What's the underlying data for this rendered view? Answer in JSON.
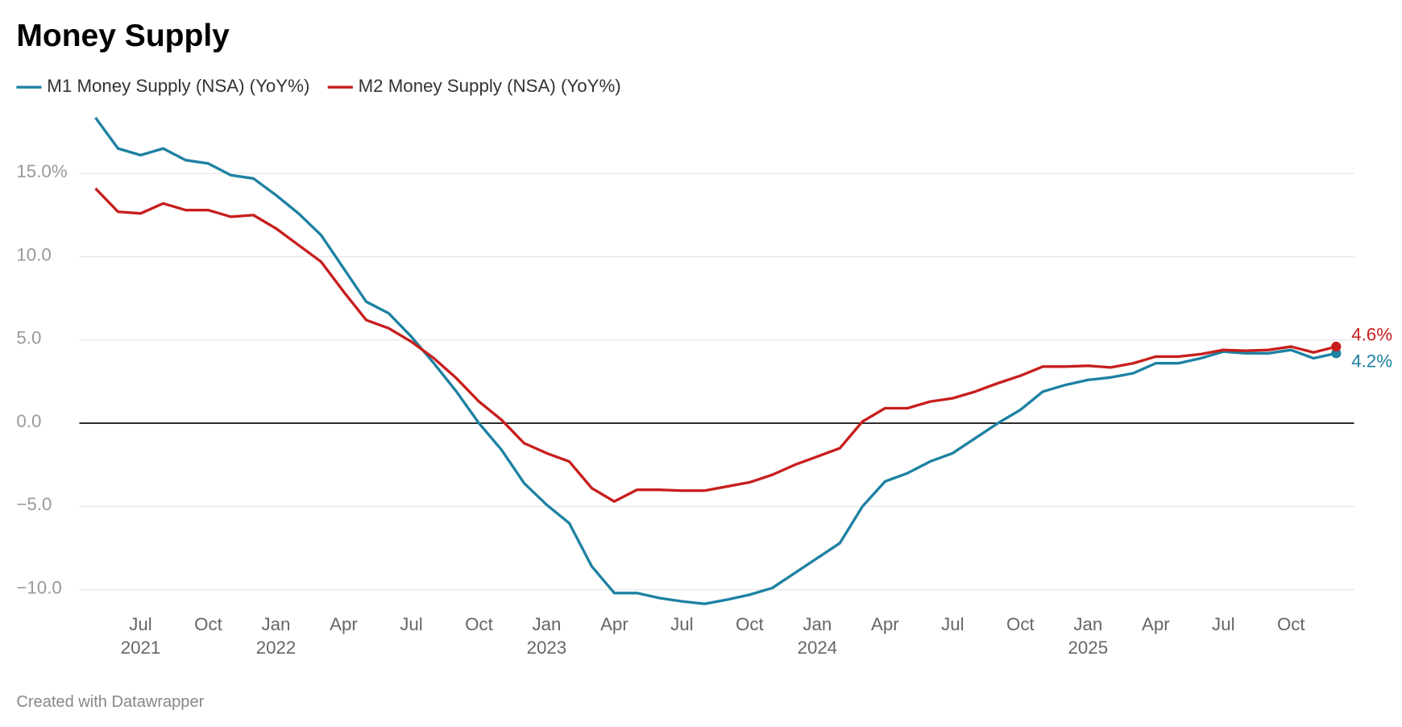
{
  "chart_data": {
    "type": "line",
    "title": "Money Supply",
    "footer": "Created with Datawrapper",
    "x": [
      "2021-05",
      "2021-06",
      "2021-07",
      "2021-08",
      "2021-09",
      "2021-10",
      "2021-11",
      "2021-12",
      "2022-01",
      "2022-02",
      "2022-03",
      "2022-04",
      "2022-05",
      "2022-06",
      "2022-07",
      "2022-08",
      "2022-09",
      "2022-10",
      "2022-11",
      "2022-12",
      "2023-01",
      "2023-02",
      "2023-03",
      "2023-04",
      "2023-05",
      "2023-06",
      "2023-07",
      "2023-08",
      "2023-09",
      "2023-10",
      "2023-11",
      "2023-12",
      "2024-01",
      "2024-02",
      "2024-03",
      "2024-04",
      "2024-05",
      "2024-06",
      "2024-07",
      "2024-08",
      "2024-09",
      "2024-10",
      "2024-11",
      "2024-12",
      "2025-01",
      "2025-02",
      "2025-03",
      "2025-04",
      "2025-05",
      "2025-06",
      "2025-07",
      "2025-08",
      "2025-09",
      "2025-10",
      "2025-11",
      "2025-12"
    ],
    "series": [
      {
        "name": "M1 Money Supply (NSA) (YoY%)",
        "color": "#1d81a2",
        "values": [
          18.35,
          16.5,
          16.1,
          16.5,
          15.8,
          15.6,
          14.9,
          14.7,
          13.7,
          12.6,
          11.3,
          9.3,
          7.3,
          6.6,
          5.2,
          3.6,
          1.9,
          0.0,
          -1.6,
          -3.6,
          -4.9,
          -6.0,
          -8.6,
          -10.2,
          -10.2,
          -10.5,
          -10.7,
          -10.85,
          -10.6,
          -10.3,
          -9.9,
          -9.0,
          -8.1,
          -7.2,
          -5.0,
          -3.5,
          -3.0,
          -2.3,
          -1.8,
          -0.9,
          0.0,
          0.8,
          1.9,
          2.3,
          2.6,
          2.75,
          3.0,
          3.6,
          3.6,
          3.9,
          4.3,
          4.2,
          4.2,
          4.4,
          3.9,
          4.2
        ],
        "value_labels": [
          null,
          null,
          null,
          null,
          null,
          null,
          null,
          null,
          null,
          null,
          null,
          null,
          null,
          null,
          null,
          null,
          null,
          null,
          null,
          null,
          null,
          null,
          null,
          null,
          null,
          null,
          null,
          null,
          null,
          null,
          null,
          null,
          null,
          null,
          null,
          null,
          null,
          null,
          null,
          null,
          null,
          null,
          null,
          null,
          null,
          null,
          null,
          null,
          null,
          null,
          null,
          null,
          null,
          null,
          null,
          "4.2%"
        ]
      },
      {
        "name": "M2 Money Supply (NSA) (YoY%)",
        "color": "#c71e1d",
        "values": [
          14.1,
          12.7,
          12.6,
          13.2,
          12.8,
          12.8,
          12.4,
          12.5,
          11.7,
          10.7,
          9.7,
          7.9,
          6.2,
          5.7,
          4.9,
          3.9,
          2.7,
          1.3,
          0.2,
          -1.2,
          -1.8,
          -2.3,
          -3.9,
          -4.7,
          -4.0,
          -4.0,
          -4.05,
          -4.05,
          -3.8,
          -3.55,
          -3.1,
          -2.5,
          -2.0,
          -1.5,
          0.1,
          0.9,
          0.9,
          1.3,
          1.5,
          1.9,
          2.4,
          2.85,
          3.4,
          3.4,
          3.45,
          3.35,
          3.6,
          4.0,
          4.0,
          4.15,
          4.4,
          4.35,
          4.4,
          4.6,
          4.25,
          4.6
        ],
        "value_labels": [
          null,
          null,
          null,
          null,
          null,
          null,
          null,
          null,
          null,
          null,
          null,
          null,
          null,
          null,
          null,
          null,
          null,
          null,
          null,
          null,
          null,
          null,
          null,
          null,
          null,
          null,
          null,
          null,
          null,
          null,
          null,
          null,
          null,
          null,
          null,
          null,
          null,
          null,
          null,
          null,
          null,
          null,
          null,
          null,
          null,
          null,
          null,
          null,
          null,
          null,
          null,
          null,
          null,
          null,
          null,
          "4.6%"
        ]
      }
    ],
    "ylim": [
      -11.5,
      18.5
    ],
    "yticks": [
      {
        "value": 15,
        "label": "15.0%"
      },
      {
        "value": 10,
        "label": "10.0"
      },
      {
        "value": 5,
        "label": "5.0"
      },
      {
        "value": 0,
        "label": "0.0"
      },
      {
        "value": -5,
        "label": "−5.0"
      },
      {
        "value": -10,
        "label": "−10.0"
      }
    ],
    "xticks": [
      {
        "value": "2021-07",
        "label": "Jul",
        "sublabel": "2021"
      },
      {
        "value": "2021-10",
        "label": "Oct"
      },
      {
        "value": "2022-01",
        "label": "Jan",
        "sublabel": "2022"
      },
      {
        "value": "2022-04",
        "label": "Apr"
      },
      {
        "value": "2022-07",
        "label": "Jul"
      },
      {
        "value": "2022-10",
        "label": "Oct"
      },
      {
        "value": "2023-01",
        "label": "Jan",
        "sublabel": "2023"
      },
      {
        "value": "2023-04",
        "label": "Apr"
      },
      {
        "value": "2023-07",
        "label": "Jul"
      },
      {
        "value": "2023-10",
        "label": "Oct"
      },
      {
        "value": "2024-01",
        "label": "Jan",
        "sublabel": "2024"
      },
      {
        "value": "2024-04",
        "label": "Apr"
      },
      {
        "value": "2024-07",
        "label": "Jul"
      },
      {
        "value": "2024-10",
        "label": "Oct"
      },
      {
        "value": "2025-01",
        "label": "Jan",
        "sublabel": "2025"
      },
      {
        "value": "2025-04",
        "label": "Apr"
      },
      {
        "value": "2025-07",
        "label": "Jul"
      },
      {
        "value": "2025-10",
        "label": "Oct"
      }
    ],
    "grid": true,
    "legend": "top-left"
  }
}
